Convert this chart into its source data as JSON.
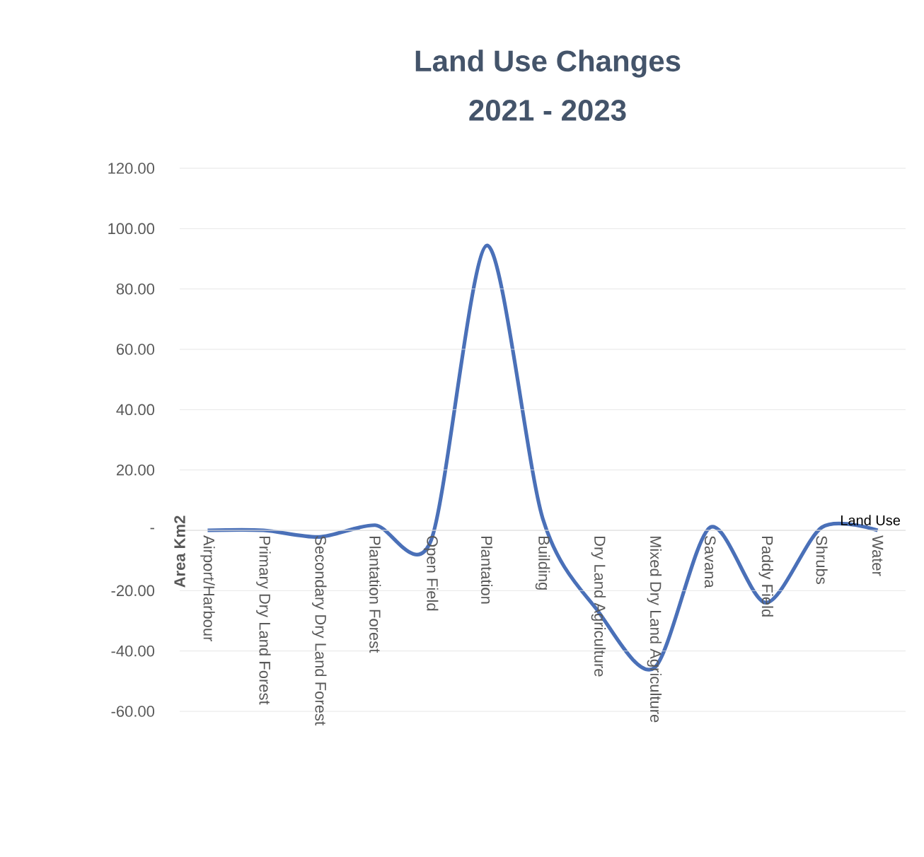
{
  "chart_data": {
    "type": "line",
    "title": "Land Use Changes",
    "subtitle": "2021 - 2023",
    "xlabel": "Land Use",
    "ylabel": "Area Km2",
    "categories": [
      "Airport/Harbour",
      "Primary Dry Land Forest",
      "Secondary Dry Land Forest",
      "Plantation Forest",
      "Open Field",
      "Plantation",
      "Building",
      "Dry Land Agriculture",
      "Mixed Dry Land Agriculture",
      "Savana",
      "Paddy Field",
      "Shrubs",
      "Water"
    ],
    "series": [
      {
        "color": "#4a70b8",
        "values": [
          0,
          0,
          -2.2,
          1.7,
          -3.4,
          94.4,
          4,
          -27,
          -45.6,
          1,
          -24,
          1,
          0
        ]
      }
    ],
    "ylim": [
      -60,
      120
    ],
    "yticks": [
      {
        "value": -60,
        "label": "-60.00"
      },
      {
        "value": -40,
        "label": "-40.00"
      },
      {
        "value": -20,
        "label": "-20.00"
      },
      {
        "value": 0,
        "label": "-"
      },
      {
        "value": 20,
        "label": "20.00"
      },
      {
        "value": 40,
        "label": "40.00"
      },
      {
        "value": 60,
        "label": "60.00"
      },
      {
        "value": 80,
        "label": "80.00"
      },
      {
        "value": 100,
        "label": "100.00"
      },
      {
        "value": 120,
        "label": "120.00"
      }
    ],
    "grid": "y"
  }
}
